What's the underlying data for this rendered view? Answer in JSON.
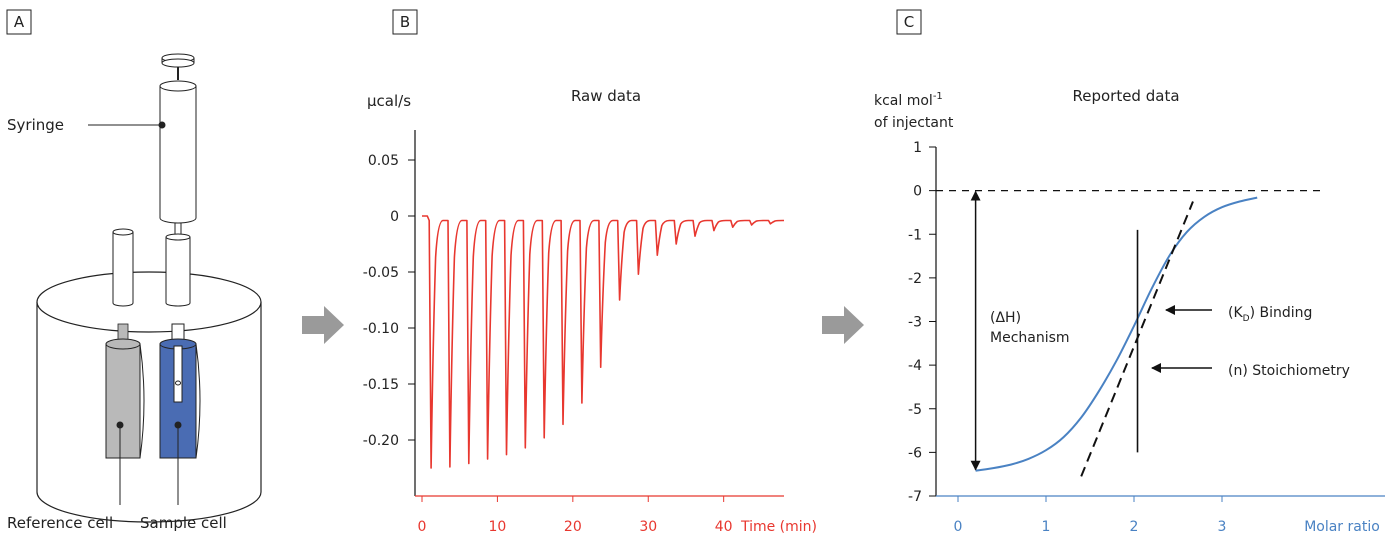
{
  "panels": {
    "a": {
      "letter": "A",
      "syringe_label": "Syringe",
      "reference_label": "Reference cell",
      "sample_label": "Sample cell",
      "colors": {
        "reference_cell": "#b9b9b9",
        "sample_cell": "#4a6cb3"
      }
    },
    "b": {
      "letter": "B",
      "title": "Raw data",
      "unit": "µcal/s",
      "x_label": "Time (min)",
      "x_ticks": [
        "0",
        "10",
        "20",
        "30",
        "40"
      ],
      "y_ticks": [
        "0.05",
        "0",
        "-0.05",
        "-0.10",
        "-0.15",
        "-0.20"
      ]
    },
    "c": {
      "letter": "C",
      "title": "Reported data",
      "y_unit_line1": "kcal mol",
      "y_unit_sup": "-1",
      "y_unit_line2": "of injectant",
      "x_label": "Molar ratio",
      "x_ticks": [
        "0",
        "1",
        "2",
        "3"
      ],
      "y_ticks": [
        "1",
        "0",
        "-1",
        "-2",
        "-3",
        "-4",
        "-5",
        "-6",
        "-7"
      ],
      "ann_dh_line1": "(ΔH)",
      "ann_dh_line2": "Mechanism",
      "ann_kd_open": "(K",
      "ann_kd_sub": "D",
      "ann_kd_rest": ") Binding",
      "ann_n": "(n) Stoichiometry"
    }
  },
  "chart_data": [
    {
      "type": "line",
      "title": "Raw data",
      "ylabel": "µcal/s",
      "xlabel": "Time (min)",
      "ylim": [
        -0.25,
        0.05
      ],
      "xlim": [
        0,
        48
      ],
      "color": "#e8372f",
      "baseline": -0.004,
      "injection_times": [
        1.2,
        3.7,
        6.2,
        8.7,
        11.2,
        13.7,
        16.2,
        18.7,
        21.2,
        23.7,
        26.2,
        28.7,
        31.2,
        33.7,
        36.2,
        38.7,
        41.2,
        43.7,
        46.2
      ],
      "peak_minima": [
        -0.225,
        -0.224,
        -0.221,
        -0.217,
        -0.213,
        -0.207,
        -0.198,
        -0.186,
        -0.167,
        -0.135,
        -0.075,
        -0.052,
        -0.035,
        -0.025,
        -0.018,
        -0.013,
        -0.01,
        -0.008,
        -0.007
      ]
    },
    {
      "type": "line",
      "title": "Reported data",
      "ylabel": "kcal mol-1 of injectant",
      "xlabel": "Molar ratio",
      "xlim": [
        0,
        3.5
      ],
      "ylim": [
        -7,
        1
      ],
      "color": "#4a82c3",
      "x": [
        0.2,
        0.4,
        0.6,
        0.8,
        1.0,
        1.2,
        1.4,
        1.6,
        1.8,
        2.0,
        2.2,
        2.4,
        2.6,
        2.8,
        3.0,
        3.2,
        3.4
      ],
      "y": [
        -6.42,
        -6.36,
        -6.28,
        -6.15,
        -5.95,
        -5.65,
        -5.2,
        -4.6,
        -3.9,
        -3.1,
        -2.25,
        -1.5,
        -0.95,
        -0.6,
        -0.38,
        -0.25,
        -0.16
      ]
    }
  ]
}
